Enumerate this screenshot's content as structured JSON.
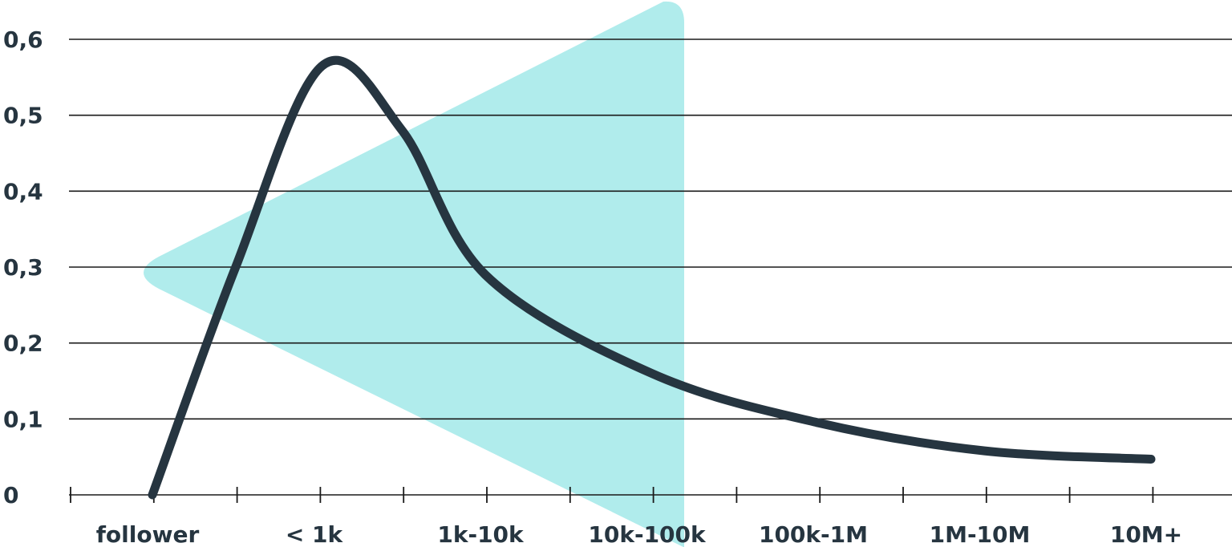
{
  "chart_data": {
    "type": "line",
    "title": "",
    "xlabel": "",
    "ylabel": "",
    "categories": [
      "follower",
      "< 1k",
      "1k-10k",
      "10k-100k",
      "100k-1M",
      "1M-10M",
      "10M+"
    ],
    "y_ticks": [
      "0",
      "0,1",
      "0,2",
      "0,3",
      "0,4",
      "0,5",
      "0,6"
    ],
    "ylim": [
      0,
      0.6
    ],
    "grid": true,
    "series": [
      {
        "x": [
          0,
          0.5,
          1.02,
          1.5,
          2.0,
          3.0,
          4.0,
          5.0,
          6.0
        ],
        "values": [
          0,
          0.3,
          0.565,
          0.48,
          0.29,
          0.16,
          0.095,
          0.058,
          0.047
        ]
      }
    ],
    "colors": {
      "line": "#263540",
      "grid": "#1a1a1a",
      "text": "#263540",
      "shape": "#b0ecec"
    }
  }
}
